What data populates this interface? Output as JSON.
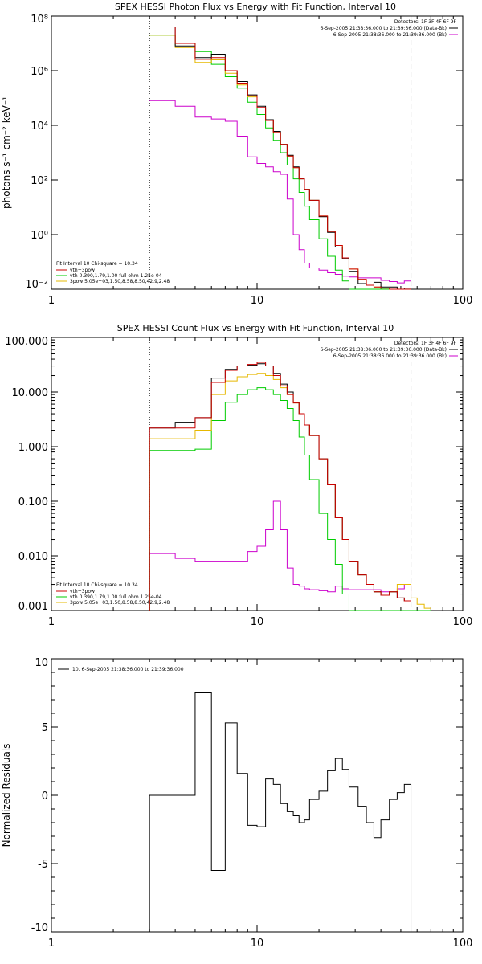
{
  "panels": [
    {
      "title": "SPEX HESSI Photon Flux vs Energy with Fit Function, Interval 10",
      "ylabel": "photons s⁻¹ cm⁻² keV⁻¹",
      "header": [
        "Detectors: 1F 3F 4F 6F 9F",
        "6-Sep-2005 21:38:36.000 to 21:39:36.000 (Data-Bk)",
        "6-Sep-2005 21:38:36.000 to 21:39:36.000 (Bk)"
      ],
      "fit_text": [
        "Fit Interval 10   Chi-square = 10.34",
        "vth+3pow",
        "vth 0.390,1.79,1.00  full ohm 1.25e-04",
        "3pow 5.05e+03,1.50,8.58,8.50,42.9,2.48"
      ],
      "x_ticks": [
        "1",
        "10",
        "100"
      ],
      "y_ticks": [
        "10⁻²",
        "10⁰",
        "10²",
        "10⁴",
        "10⁶"
      ]
    },
    {
      "title": "SPEX HESSI Count Flux vs Energy with Fit Function, Interval 10",
      "header": [
        "Detectors: 1F 3F 4F 6F 9F",
        "6-Sep-2005 21:38:36.000 to 21:39:36.000 (Data-Bk)",
        "6-Sep-2005 21:38:36.000 to 21:39:36.000 (Bk)"
      ],
      "fit_text": [
        "Fit Interval 10   Chi-square = 10.34",
        "vth+3pow",
        "vth 0.390,1.79,1.00  full ohm 1.25e-04",
        "3pow 5.05e+03,1.50,8.58,8.50,42.9,2.48"
      ],
      "x_ticks": [
        "1",
        "10",
        "100"
      ],
      "y_ticks": [
        "0.001",
        "0.010",
        "0.100",
        "1.000",
        "10.000",
        "100.000"
      ]
    },
    {
      "ylabel": "Normalized Residuals",
      "legend": "10.  6-Sep-2005 21:38:36.000 to 21:39:36.000",
      "x_ticks": [
        "1",
        "10",
        "100"
      ],
      "y_ticks": [
        "-10",
        "-5",
        "0",
        "5",
        "10"
      ]
    }
  ],
  "colors": {
    "data": "#000000",
    "fit": "#cc0000",
    "bk": "#cc00cc",
    "vth": "#00cc00",
    "pow": "#e6b800"
  },
  "chart_data": [
    {
      "type": "line",
      "title": "SPEX HESSI Photon Flux vs Energy with Fit Function, Interval 10",
      "xscale": "log",
      "yscale": "log",
      "xlim": [
        1,
        100
      ],
      "ylim": [
        0.01,
        100000000
      ],
      "fit_range": [
        3.0,
        56.0
      ],
      "edges": [
        3.0,
        4.0,
        5.0,
        6.0,
        7.0,
        8.0,
        9.0,
        10.0,
        11.0,
        12.0,
        13.0,
        14.0,
        15.0,
        16.0,
        17.0,
        18.0,
        20.0,
        22.0,
        24.0,
        26.0,
        28.0,
        31.0,
        34.0,
        37.0,
        40.0,
        44.0,
        48.0,
        52.0,
        56.0
      ],
      "series": [
        {
          "values": [
            40000000.0,
            8000000.0,
            3000000.0,
            4000000.0,
            1000000.0,
            400000.0,
            130000.0,
            50000.0,
            16000.0,
            6000.0,
            2000.0,
            800,
            300,
            110,
            45,
            18,
            4.5,
            1.2,
            0.35,
            0.13,
            0.045,
            0.016,
            0.014,
            0.018,
            0.012,
            0.012,
            0.01,
            0.011
          ]
        },
        {
          "values": [
            40000000.0,
            10000000.0,
            2600000.0,
            3000000.0,
            1000000.0,
            350000.0,
            120000.0,
            45000.0,
            15000.0,
            5500.0,
            2000.0,
            750,
            280,
            110,
            45,
            18,
            4.8,
            1.3,
            0.4,
            0.14,
            0.055,
            0.023,
            0.014,
            0.012,
            0.011,
            0.01,
            0.01,
            0.01
          ]
        },
        {
          "values": [
            80000.0,
            50000.0,
            20000.0,
            17000.0,
            14000.0,
            4000.0,
            700,
            400,
            300,
            200,
            160,
            20,
            1.0,
            0.28,
            0.09,
            0.06,
            0.05,
            0.04,
            0.035,
            0.03,
            0.028,
            0.026,
            0.026,
            0.026,
            0.021,
            0.019,
            0.017,
            0.02
          ]
        },
        {
          "values": [
            20000000.0,
            10000000.0,
            5000000.0,
            1700000.0,
            600000.0,
            230000.0,
            70000.0,
            25000.0,
            8000.0,
            2800.0,
            1000.0,
            350,
            110,
            35,
            11,
            3.5,
            0.7,
            0.16,
            0.05,
            0.02,
            0.01,
            0.01,
            0.01,
            0.01,
            0.01,
            0.01,
            0.01,
            0.01
          ]
        },
        {
          "values": [
            20000000.0,
            7000000.0,
            2000000.0,
            2500000.0,
            800000.0,
            300000.0,
            110000.0,
            43000.0,
            15000.0,
            5500.0,
            2000.0,
            750,
            280,
            110,
            45,
            18,
            4.8,
            1.3,
            0.4,
            0.14,
            0.055,
            0.023,
            0.014,
            0.012,
            0.011,
            0.01,
            0.01,
            0.01
          ]
        }
      ]
    },
    {
      "type": "line",
      "title": "SPEX HESSI Count Flux vs Energy with Fit Function, Interval 10",
      "xscale": "log",
      "yscale": "log",
      "xlim": [
        1,
        100
      ],
      "ylim": [
        0.001,
        100
      ],
      "fit_range": [
        3.0,
        56.0
      ],
      "edges": [
        3.0,
        4.0,
        5.0,
        6.0,
        7.0,
        8.0,
        9.0,
        10.0,
        11.0,
        12.0,
        13.0,
        14.0,
        15.0,
        16.0,
        17.0,
        18.0,
        20.0,
        22.0,
        24.0,
        26.0,
        28.0,
        31.0,
        34.0,
        37.0,
        40.0,
        44.0,
        48.0,
        52.0,
        56.0,
        60.0,
        65.0,
        70.0
      ],
      "series": [
        {
          "values": [
            2.2,
            2.8,
            3.4,
            18,
            26,
            30,
            31,
            33,
            30,
            22,
            14,
            10,
            6.5,
            4.0,
            2.5,
            1.6,
            0.6,
            0.2,
            0.05,
            0.02,
            0.008,
            0.0045,
            0.003,
            0.0022,
            0.0019,
            0.0022,
            0.0017,
            0.0015,
            null,
            null,
            null
          ]
        },
        {
          "values": [
            2.2,
            2.2,
            3.4,
            15,
            25,
            30,
            32,
            35,
            30,
            20,
            13,
            9,
            6.3,
            4.0,
            2.5,
            1.6,
            0.6,
            0.2,
            0.05,
            0.02,
            0.008,
            0.0045,
            0.003,
            0.0022,
            0.0019,
            0.0022,
            0.0017,
            0.0015,
            null,
            null,
            null
          ]
        },
        {
          "values": [
            0.011,
            0.009,
            0.008,
            0.008,
            0.008,
            0.008,
            0.012,
            0.015,
            0.03,
            0.1,
            0.03,
            0.006,
            0.003,
            0.0028,
            0.0025,
            0.0024,
            0.0023,
            0.0022,
            0.0028,
            0.0025,
            0.0024,
            0.0024,
            0.0024,
            0.0024,
            0.0022,
            0.002,
            0.0025,
            0.003,
            0.002,
            0.002,
            0.002
          ]
        },
        {
          "values": [
            0.85,
            0.85,
            0.9,
            3.0,
            6.5,
            9.0,
            11,
            12,
            11,
            9.0,
            7.0,
            5.0,
            3.0,
            1.5,
            0.7,
            0.25,
            0.06,
            0.02,
            0.007,
            0.002,
            0.001,
            0.001,
            0.001,
            0.001,
            0.001,
            0.001,
            0.001,
            0.001,
            0.001,
            0.001,
            0.001
          ]
        },
        {
          "values": [
            1.4,
            1.4,
            2.0,
            9.0,
            16,
            19,
            21,
            22,
            20,
            17,
            12,
            9,
            6.3,
            4.0,
            2.5,
            1.6,
            0.6,
            0.2,
            0.05,
            0.02,
            0.008,
            0.0045,
            0.003,
            0.0022,
            0.0019,
            0.0022,
            0.003,
            0.003,
            0.0017,
            0.0013,
            0.0011
          ]
        }
      ]
    },
    {
      "type": "line",
      "title": "",
      "ylabel": "Normalized Residuals",
      "xscale": "log",
      "xlim": [
        1,
        100
      ],
      "ylim": [
        -10,
        10
      ],
      "edges": [
        3.0,
        4.0,
        5.0,
        6.0,
        7.0,
        8.0,
        9.0,
        10.0,
        11.0,
        12.0,
        13.0,
        14.0,
        15.0,
        16.0,
        17.0,
        18.0,
        20.0,
        22.0,
        24.0,
        26.0,
        28.0,
        31.0,
        34.0,
        37.0,
        40.0,
        44.0,
        48.0,
        52.0,
        56.0
      ],
      "series": [
        {
          "name": "10.  6-Sep-2005 21:38:36.000 to 21:39:36.000",
          "values": [
            0.0,
            0.0,
            7.5,
            -5.5,
            5.3,
            1.6,
            -2.2,
            -2.3,
            1.2,
            0.8,
            -0.6,
            -1.2,
            -1.5,
            -2.0,
            -1.8,
            -0.3,
            0.3,
            1.8,
            2.7,
            1.9,
            0.6,
            -0.8,
            -2.0,
            -3.1,
            -1.8,
            -0.3,
            0.2,
            0.8
          ]
        }
      ]
    }
  ]
}
